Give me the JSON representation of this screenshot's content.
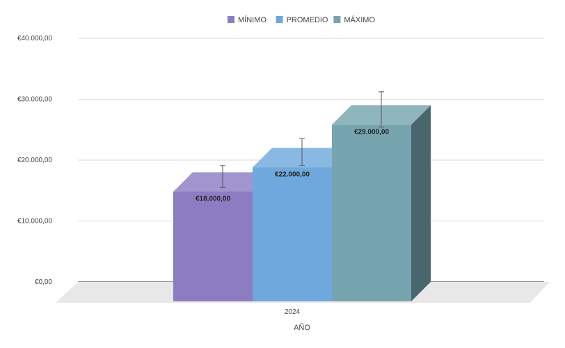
{
  "chart_data": {
    "type": "bar",
    "title": "",
    "xlabel": "AÑO",
    "ylabel": "",
    "categories": [
      "2024"
    ],
    "series": [
      {
        "name": "MÍNIMO",
        "values": [
          18000
        ],
        "error": [
          1800
        ],
        "color": "#8e7cc3",
        "label": "€18.000,00"
      },
      {
        "name": "PROMEDIO",
        "values": [
          22000
        ],
        "error": [
          2200
        ],
        "color": "#6fa8dc",
        "label": "€22.000,00"
      },
      {
        "name": "MÁXIMO",
        "values": [
          29000
        ],
        "error": [
          2900
        ],
        "color": "#76a5af",
        "label": "€29.000,00"
      }
    ],
    "ylim": [
      0,
      40000
    ],
    "yticks": [
      {
        "value": 0,
        "label": "€0,00"
      },
      {
        "value": 10000,
        "label": "€10.000,00"
      },
      {
        "value": 20000,
        "label": "€20.000,00"
      },
      {
        "value": 30000,
        "label": "€30.000,00"
      },
      {
        "value": 40000,
        "label": "€40.000,00"
      }
    ],
    "grid": true,
    "legend": "top-center",
    "style": "3d"
  }
}
